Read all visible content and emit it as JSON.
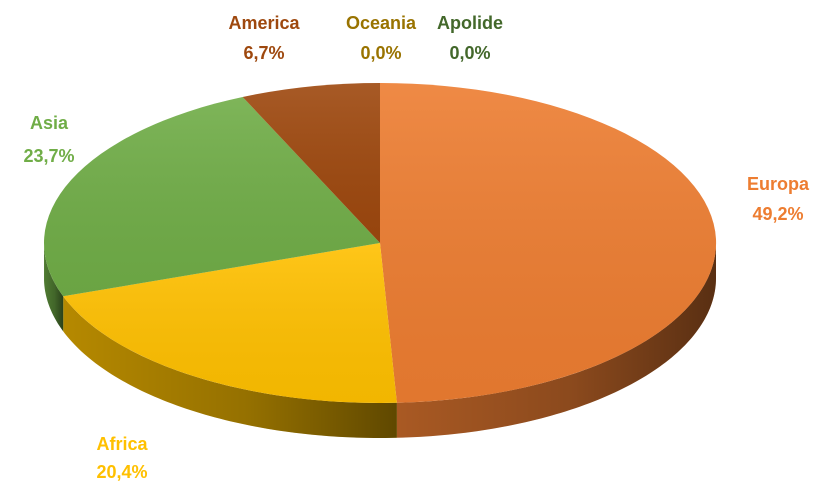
{
  "chart_data": {
    "type": "pie",
    "style": "3d",
    "slices": [
      {
        "label": "Europa",
        "value_text": "49,2%",
        "value": 49.2,
        "color": "#ED7D31"
      },
      {
        "label": "Africa",
        "value_text": "20,4%",
        "value": 20.4,
        "color": "#FFC000"
      },
      {
        "label": "Asia",
        "value_text": "23,7%",
        "value": 23.7,
        "color": "#70AD47"
      },
      {
        "label": "America",
        "value_text": "6,7%",
        "value": 6.7,
        "color": "#9E480E"
      },
      {
        "label": "Oceania",
        "value_text": "0,0%",
        "value": 0.0,
        "color": "#997300"
      },
      {
        "label": "Apolide",
        "value_text": "0,0%",
        "value": 0.0,
        "color": "#43682B"
      }
    ],
    "legend": "none",
    "data_labels": "outside"
  }
}
